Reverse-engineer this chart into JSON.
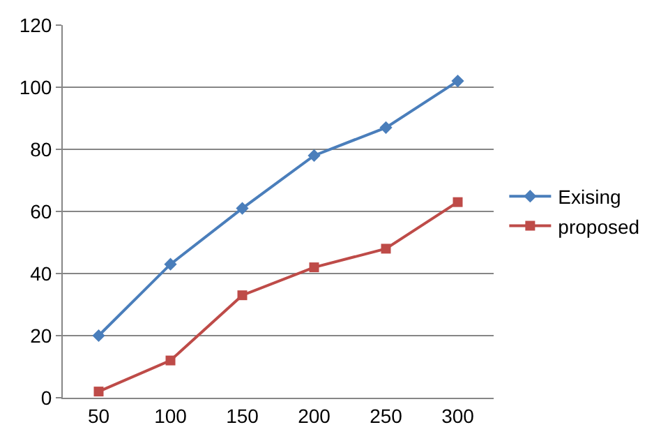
{
  "chart_data": {
    "type": "line",
    "categories": [
      "50",
      "100",
      "150",
      "200",
      "250",
      "300"
    ],
    "series": [
      {
        "name": "Exising",
        "color": "#4a7ebb",
        "marker": "diamond",
        "values": [
          20,
          43,
          61,
          78,
          87,
          102
        ]
      },
      {
        "name": "proposed",
        "color": "#be4b48",
        "marker": "square",
        "values": [
          2,
          12,
          33,
          42,
          48,
          63
        ]
      }
    ],
    "ylim": [
      0,
      120
    ],
    "yticks": [
      0,
      20,
      40,
      60,
      80,
      100,
      120
    ],
    "grid": "y",
    "legend": "right",
    "line_style": "solid"
  }
}
